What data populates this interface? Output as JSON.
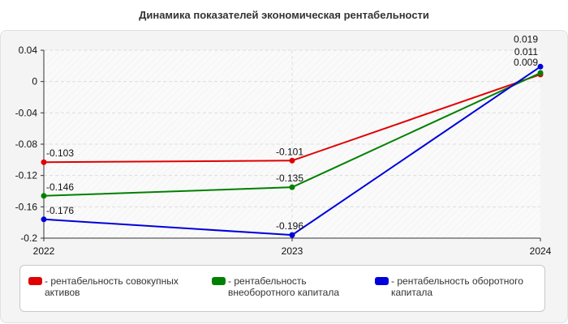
{
  "chart_data": {
    "type": "line",
    "title": "Динамика показателей экономическая рентабельности",
    "xlabel": "",
    "ylabel": "",
    "categories": [
      "2022",
      "2023",
      "2024"
    ],
    "ylim": [
      -0.2,
      0.04
    ],
    "yticks": [
      "0.04",
      "0",
      "-0.04",
      "-0.08",
      "-0.12",
      "-0.16",
      "-0.2"
    ],
    "grid": true,
    "legend_position": "bottom",
    "series": [
      {
        "name": "рентабельность совокупных активов",
        "legend_lines": [
          "рентабельность совокупных",
          "активов"
        ],
        "color": "#e00000",
        "values": [
          -0.103,
          -0.101,
          0.009
        ],
        "labels": [
          "-0.103",
          "-0.101",
          "0.009"
        ]
      },
      {
        "name": "рентабельность внеоборотного капитала",
        "legend_lines": [
          "рентабельность",
          "внеоборотного капитала"
        ],
        "color": "#008000",
        "values": [
          -0.146,
          -0.135,
          0.011
        ],
        "labels": [
          "-0.146",
          "-0.135",
          "0.011"
        ]
      },
      {
        "name": "рентабельность оборотного капитала",
        "legend_lines": [
          "рентабельность оборотного",
          "капитала"
        ],
        "color": "#0000dd",
        "values": [
          -0.176,
          -0.196,
          0.019
        ],
        "labels": [
          "-0.176",
          "-0.196",
          "0.019"
        ]
      }
    ]
  }
}
